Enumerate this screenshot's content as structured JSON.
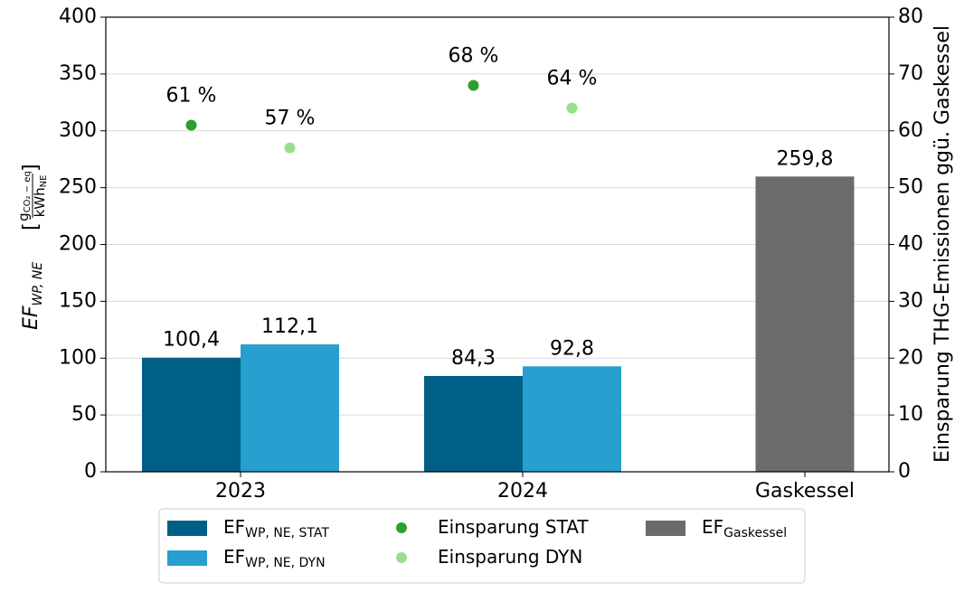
{
  "chart_data": {
    "type": "bar",
    "ylabel": {
      "main": "EF",
      "main_sub": "WP, NE",
      "open": "[",
      "num": "g",
      "num_sub": "CO₂ − eq",
      "den": "kWh",
      "den_sub": "NE",
      "close": "]"
    },
    "y2label": "Einsparung THG-Emissionen ggü. Gaskessel",
    "categories": [
      "2023",
      "2024",
      "Gaskessel"
    ],
    "series": [
      {
        "name": "EF",
        "name_sub": "WP, NE, STAT",
        "type": "bar",
        "color": "#005f87",
        "values": [
          100.4,
          84.3,
          null
        ],
        "value_labels": [
          "100,4",
          "84,3",
          null
        ]
      },
      {
        "name": "EF",
        "name_sub": "WP, NE, DYN",
        "type": "bar",
        "color": "#279fcf",
        "values": [
          112.1,
          92.8,
          null
        ],
        "value_labels": [
          "112,1",
          "92,8",
          null
        ]
      },
      {
        "name": "Einsparung STAT",
        "type": "scatter",
        "axis": "y2",
        "color": "#2ca02c",
        "values": [
          61,
          68,
          null
        ],
        "value_labels": [
          "61 %",
          "68 %",
          null
        ]
      },
      {
        "name": "Einsparung DYN",
        "type": "scatter",
        "axis": "y2",
        "color": "#98df8a",
        "values": [
          57,
          64,
          null
        ],
        "value_labels": [
          "57 %",
          "64 %",
          null
        ]
      },
      {
        "name": "EF",
        "name_sub": "Gaskessel",
        "type": "bar",
        "color": "#6b6b6b",
        "values": [
          null,
          null,
          259.8
        ],
        "value_labels": [
          null,
          null,
          "259,8"
        ]
      }
    ],
    "ylim": [
      0,
      400
    ],
    "yticks": [
      0,
      50,
      100,
      150,
      200,
      250,
      300,
      350,
      400
    ],
    "y2lim": [
      0,
      80
    ],
    "y2ticks": [
      0,
      10,
      20,
      30,
      40,
      50,
      60,
      70,
      80
    ],
    "grid": true,
    "legend": "bottom"
  }
}
